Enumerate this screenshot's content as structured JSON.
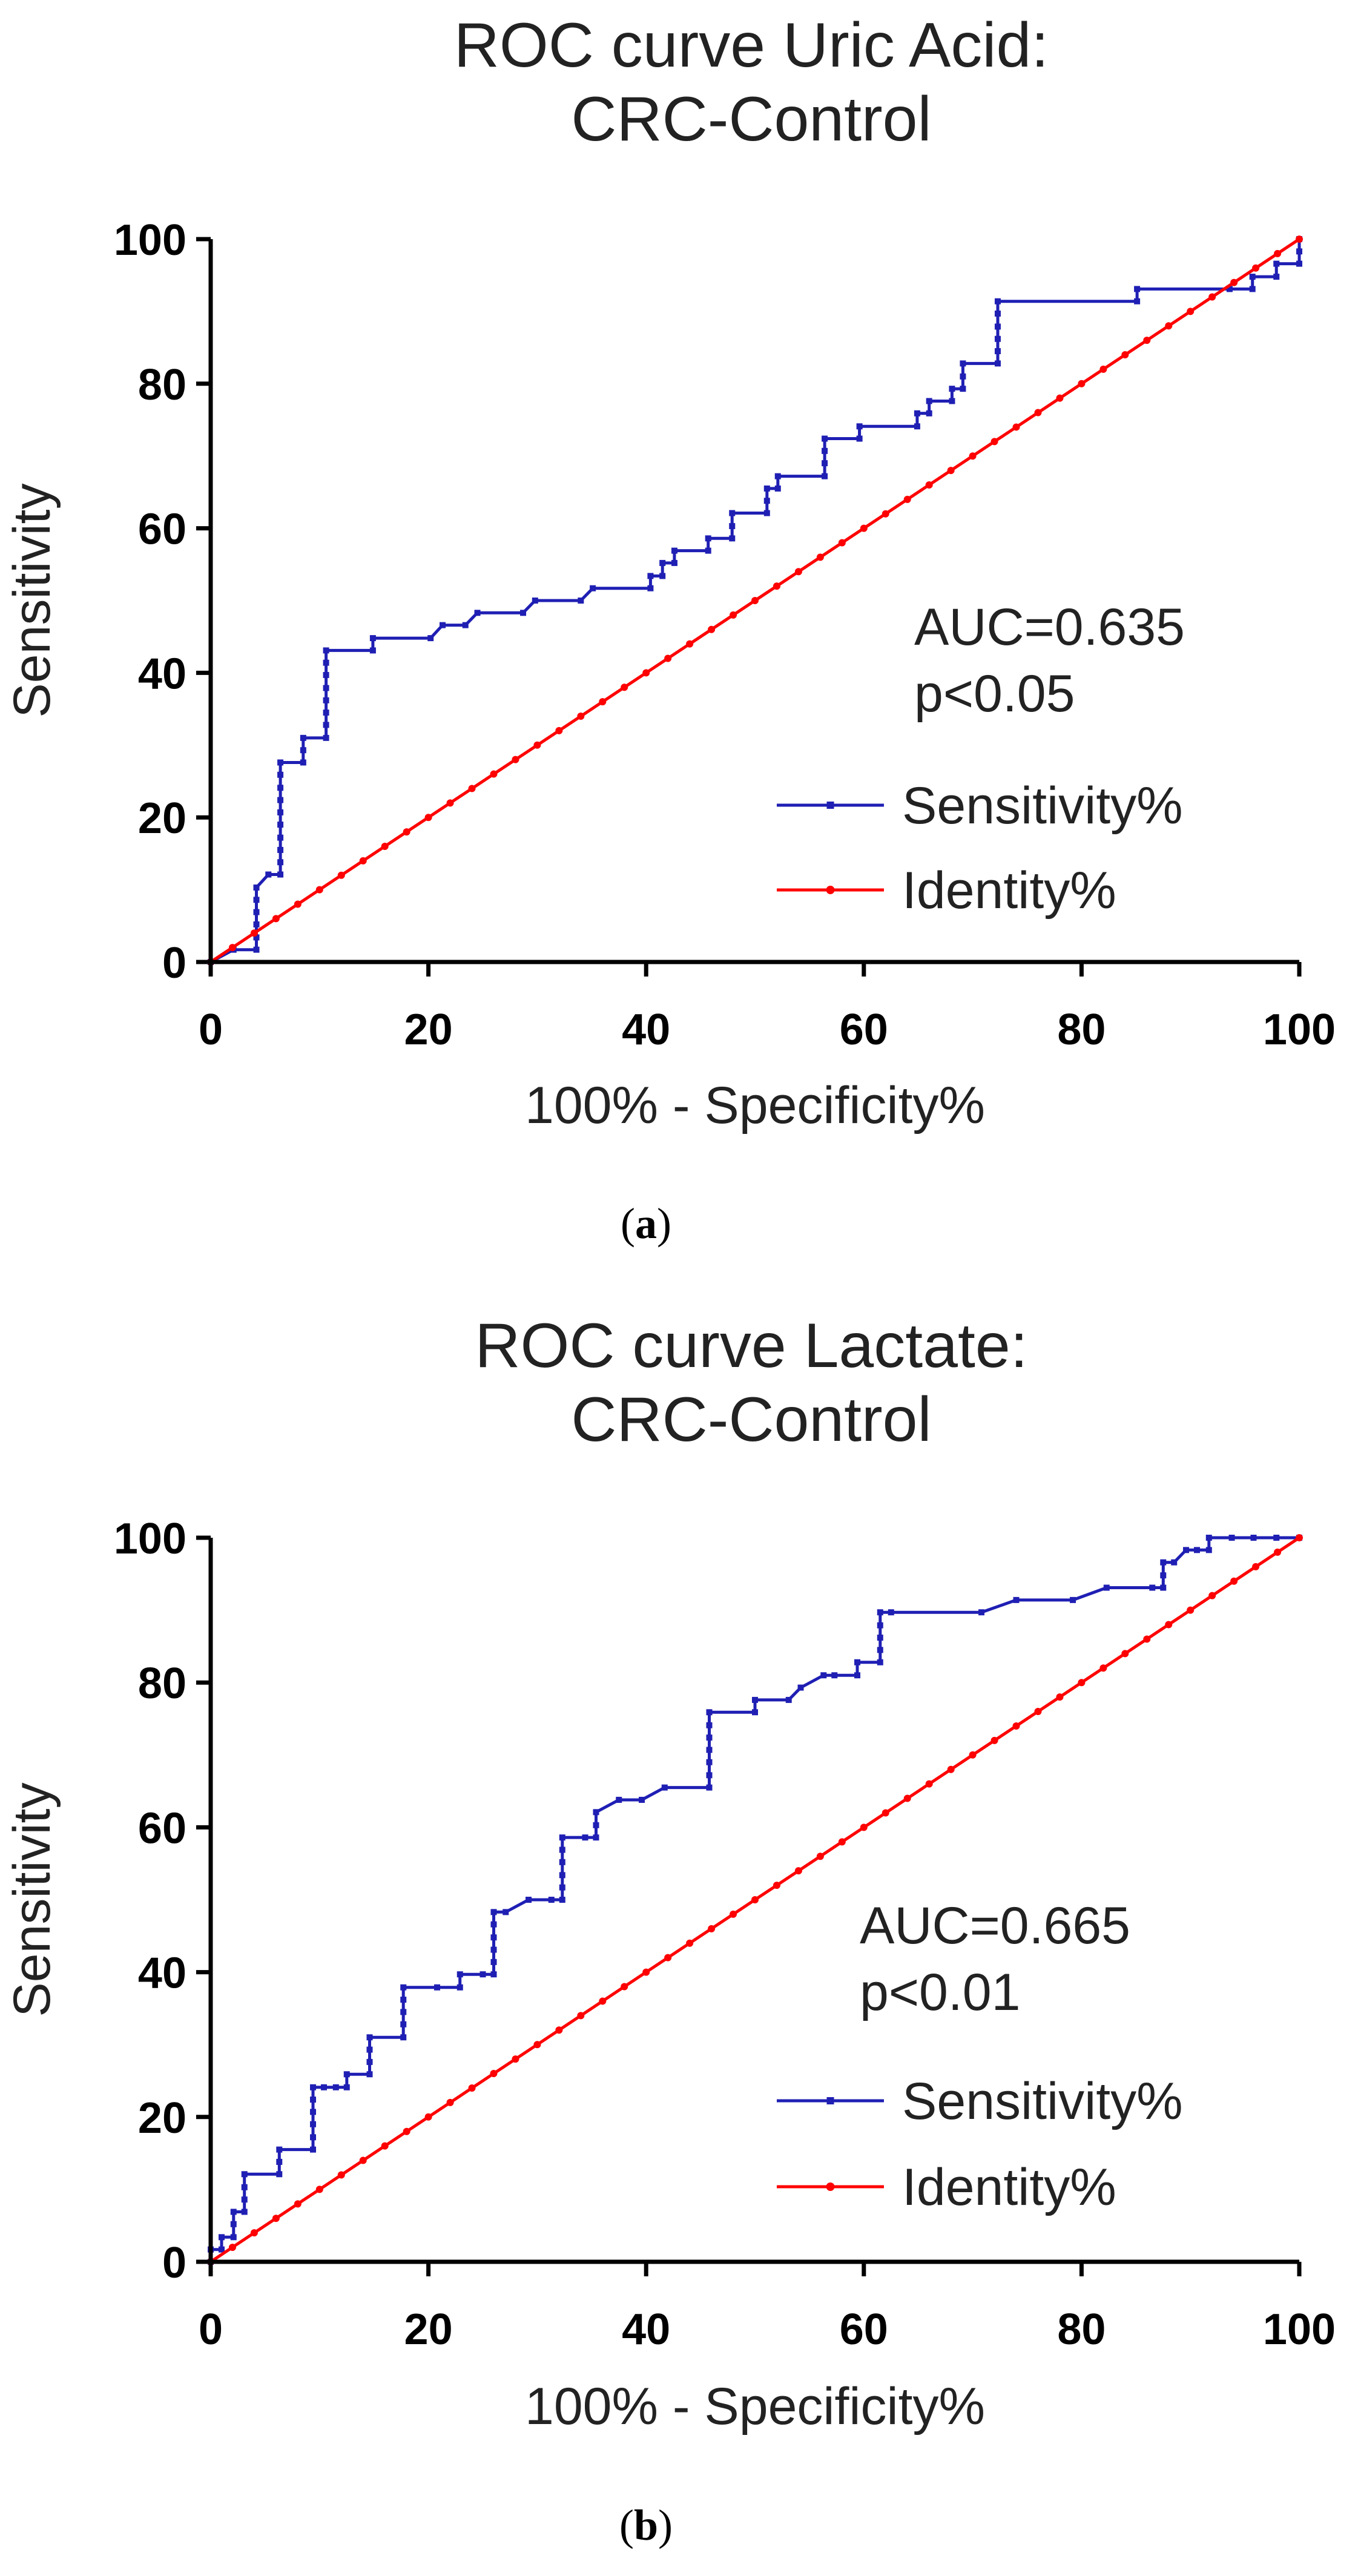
{
  "chart_data": [
    {
      "type": "line",
      "title": [
        "ROC curve Uric Acid:",
        "CRC-Control"
      ],
      "xlabel": "100% - Specificity%",
      "ylabel": "Sensitivity",
      "xlim": [
        0,
        100
      ],
      "ylim": [
        0,
        100
      ],
      "xticks": [
        0,
        20,
        40,
        60,
        80,
        100
      ],
      "yticks": [
        0,
        20,
        40,
        60,
        80,
        100
      ],
      "annotations": [
        "AUC=0.635",
        "p<0.05"
      ],
      "caption": {
        "open": "(",
        "letter": "a",
        "close": ")"
      },
      "legend_position": "right-lower",
      "series": [
        {
          "name": "Sensitivity%",
          "color": "#1f1fb4",
          "style": "step",
          "points": [
            [
              0,
              0
            ],
            [
              2.1,
              1.7
            ],
            [
              4.2,
              1.7
            ],
            [
              4.2,
              3.4
            ],
            [
              4.2,
              5.2
            ],
            [
              4.2,
              6.9
            ],
            [
              4.2,
              8.6
            ],
            [
              4.2,
              10.3
            ],
            [
              5.3,
              12.1
            ],
            [
              6.4,
              12.1
            ],
            [
              6.4,
              13.8
            ],
            [
              6.4,
              15.5
            ],
            [
              6.4,
              17.2
            ],
            [
              6.4,
              19.0
            ],
            [
              6.4,
              20.7
            ],
            [
              6.4,
              22.4
            ],
            [
              6.4,
              24.1
            ],
            [
              6.4,
              25.9
            ],
            [
              6.4,
              27.6
            ],
            [
              8.5,
              27.6
            ],
            [
              8.5,
              29.3
            ],
            [
              8.5,
              31.0
            ],
            [
              10.6,
              31.0
            ],
            [
              10.6,
              32.8
            ],
            [
              10.6,
              34.5
            ],
            [
              10.6,
              36.2
            ],
            [
              10.6,
              37.9
            ],
            [
              10.6,
              39.7
            ],
            [
              10.6,
              41.4
            ],
            [
              10.6,
              43.1
            ],
            [
              14.9,
              43.1
            ],
            [
              14.9,
              44.8
            ],
            [
              20.2,
              44.8
            ],
            [
              21.3,
              46.6
            ],
            [
              23.4,
              46.6
            ],
            [
              24.5,
              48.3
            ],
            [
              28.7,
              48.3
            ],
            [
              29.8,
              50.0
            ],
            [
              34.0,
              50.0
            ],
            [
              35.1,
              51.7
            ],
            [
              40.4,
              51.7
            ],
            [
              40.4,
              53.4
            ],
            [
              41.5,
              53.4
            ],
            [
              41.5,
              55.2
            ],
            [
              42.6,
              55.2
            ],
            [
              42.6,
              56.9
            ],
            [
              45.7,
              56.9
            ],
            [
              45.7,
              58.6
            ],
            [
              47.9,
              58.6
            ],
            [
              47.9,
              60.3
            ],
            [
              47.9,
              62.1
            ],
            [
              51.1,
              62.1
            ],
            [
              51.1,
              63.8
            ],
            [
              51.1,
              65.5
            ],
            [
              52.1,
              65.5
            ],
            [
              52.1,
              67.2
            ],
            [
              56.4,
              67.2
            ],
            [
              56.4,
              69.0
            ],
            [
              56.4,
              70.7
            ],
            [
              56.4,
              72.4
            ],
            [
              59.6,
              72.4
            ],
            [
              59.6,
              74.1
            ],
            [
              64.9,
              74.1
            ],
            [
              64.9,
              75.9
            ],
            [
              66.0,
              75.9
            ],
            [
              66.0,
              77.6
            ],
            [
              68.1,
              77.6
            ],
            [
              68.1,
              79.3
            ],
            [
              69.1,
              79.3
            ],
            [
              69.1,
              81.0
            ],
            [
              69.1,
              82.8
            ],
            [
              72.3,
              82.8
            ],
            [
              72.3,
              84.5
            ],
            [
              72.3,
              86.2
            ],
            [
              72.3,
              87.9
            ],
            [
              72.3,
              89.7
            ],
            [
              72.3,
              91.4
            ],
            [
              85.1,
              91.4
            ],
            [
              85.1,
              93.1
            ],
            [
              93.6,
              93.1
            ],
            [
              95.7,
              93.1
            ],
            [
              95.7,
              94.8
            ],
            [
              97.9,
              94.8
            ],
            [
              97.9,
              96.6
            ],
            [
              100,
              96.6
            ],
            [
              100,
              98.3
            ],
            [
              100,
              100
            ]
          ]
        },
        {
          "name": "Identity%",
          "color": "#ff0000",
          "style": "straight",
          "points": [
            [
              0,
              0
            ],
            [
              100,
              100
            ]
          ]
        }
      ]
    },
    {
      "type": "line",
      "title": [
        "ROC curve Lactate:",
        "CRC-Control"
      ],
      "xlabel": "100% - Specificity%",
      "ylabel": "Sensitivity",
      "xlim": [
        0,
        100
      ],
      "ylim": [
        0,
        100
      ],
      "xticks": [
        0,
        20,
        40,
        60,
        80,
        100
      ],
      "yticks": [
        0,
        20,
        40,
        60,
        80,
        100
      ],
      "annotations": [
        "AUC=0.665",
        "p<0.01"
      ],
      "caption": {
        "open": "(",
        "letter": "b",
        "close": ")"
      },
      "legend_position": "right-lower",
      "series": [
        {
          "name": "Sensitivity%",
          "color": "#1f1fb4",
          "style": "step",
          "points": [
            [
              0,
              0
            ],
            [
              0,
              1.7
            ],
            [
              1.0,
              1.7
            ],
            [
              1.0,
              3.4
            ],
            [
              2.1,
              3.4
            ],
            [
              2.1,
              5.2
            ],
            [
              2.1,
              6.9
            ],
            [
              3.1,
              6.9
            ],
            [
              3.1,
              8.6
            ],
            [
              3.1,
              10.3
            ],
            [
              3.1,
              12.1
            ],
            [
              6.3,
              12.1
            ],
            [
              6.3,
              13.8
            ],
            [
              6.3,
              15.5
            ],
            [
              9.4,
              15.5
            ],
            [
              9.4,
              17.2
            ],
            [
              9.4,
              19.0
            ],
            [
              9.4,
              20.7
            ],
            [
              9.4,
              22.4
            ],
            [
              9.4,
              24.1
            ],
            [
              10.4,
              24.1
            ],
            [
              11.5,
              24.1
            ],
            [
              12.5,
              24.1
            ],
            [
              12.5,
              25.9
            ],
            [
              14.6,
              25.9
            ],
            [
              14.6,
              27.6
            ],
            [
              14.6,
              29.3
            ],
            [
              14.6,
              31.0
            ],
            [
              17.7,
              31.0
            ],
            [
              17.7,
              32.8
            ],
            [
              17.7,
              34.5
            ],
            [
              17.7,
              36.2
            ],
            [
              17.7,
              37.9
            ],
            [
              20.8,
              37.9
            ],
            [
              22.9,
              37.9
            ],
            [
              22.9,
              39.7
            ],
            [
              25.0,
              39.7
            ],
            [
              26.0,
              39.7
            ],
            [
              26.0,
              41.4
            ],
            [
              26.0,
              43.1
            ],
            [
              26.0,
              44.8
            ],
            [
              26.0,
              46.6
            ],
            [
              26.0,
              48.3
            ],
            [
              27.1,
              48.3
            ],
            [
              29.2,
              50.0
            ],
            [
              31.3,
              50.0
            ],
            [
              32.3,
              50.0
            ],
            [
              32.3,
              51.7
            ],
            [
              32.3,
              53.4
            ],
            [
              32.3,
              55.2
            ],
            [
              32.3,
              56.9
            ],
            [
              32.3,
              58.6
            ],
            [
              34.4,
              58.6
            ],
            [
              35.4,
              58.6
            ],
            [
              35.4,
              60.3
            ],
            [
              35.4,
              62.1
            ],
            [
              37.5,
              63.8
            ],
            [
              39.6,
              63.8
            ],
            [
              41.7,
              65.5
            ],
            [
              45.8,
              65.5
            ],
            [
              45.8,
              67.2
            ],
            [
              45.8,
              69.0
            ],
            [
              45.8,
              70.7
            ],
            [
              45.8,
              72.4
            ],
            [
              45.8,
              74.1
            ],
            [
              45.8,
              75.9
            ],
            [
              50.0,
              75.9
            ],
            [
              50.0,
              77.6
            ],
            [
              53.1,
              77.6
            ],
            [
              54.2,
              79.3
            ],
            [
              56.3,
              81.0
            ],
            [
              57.3,
              81.0
            ],
            [
              59.4,
              81.0
            ],
            [
              59.4,
              82.8
            ],
            [
              61.5,
              82.8
            ],
            [
              61.5,
              84.5
            ],
            [
              61.5,
              86.2
            ],
            [
              61.5,
              87.9
            ],
            [
              61.5,
              89.7
            ],
            [
              62.5,
              89.7
            ],
            [
              70.8,
              89.7
            ],
            [
              74.0,
              91.4
            ],
            [
              79.2,
              91.4
            ],
            [
              82.3,
              93.1
            ],
            [
              86.5,
              93.1
            ],
            [
              87.5,
              93.1
            ],
            [
              87.5,
              94.8
            ],
            [
              87.5,
              96.6
            ],
            [
              88.5,
              96.6
            ],
            [
              89.6,
              98.3
            ],
            [
              90.6,
              98.3
            ],
            [
              91.7,
              98.3
            ],
            [
              91.7,
              100
            ],
            [
              93.8,
              100
            ],
            [
              95.8,
              100
            ],
            [
              97.9,
              100
            ],
            [
              100,
              100
            ]
          ]
        },
        {
          "name": "Identity%",
          "color": "#ff0000",
          "style": "straight",
          "points": [
            [
              0,
              0
            ],
            [
              100,
              100
            ]
          ]
        }
      ]
    }
  ]
}
